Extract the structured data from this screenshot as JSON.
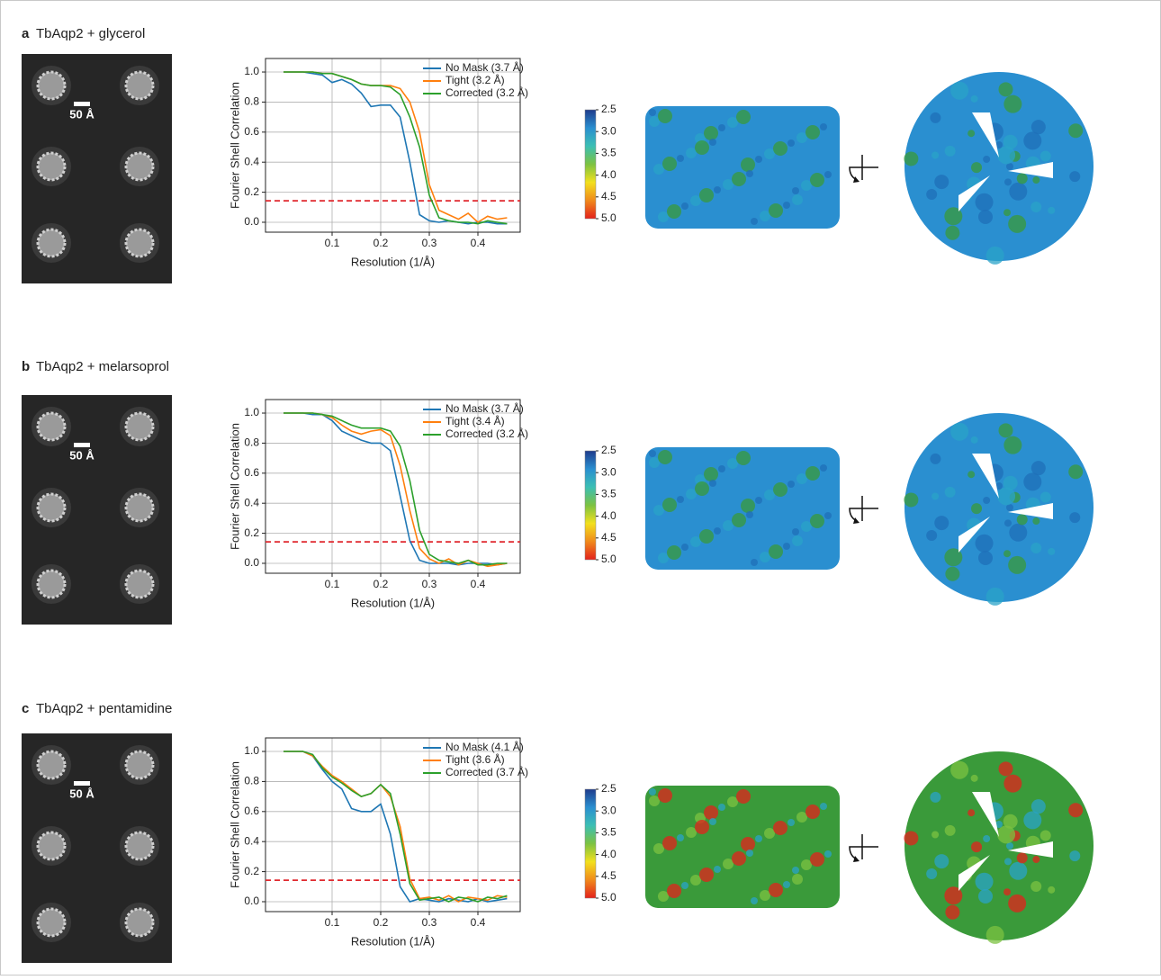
{
  "panels": [
    {
      "letter": "a",
      "title": "TbAqp2 + glycerol",
      "scale_bar": "50 Å",
      "colorbar": {
        "lim": [
          2.5,
          5.0
        ],
        "ticks": [
          2.5,
          {
            "value": 3,
            "label": "3.0"
          },
          3.5,
          {
            "value": 4,
            "label": "4.0"
          },
          4.5,
          {
            "value": 5,
            "label": "5.0"
          }
        ],
        "colors": [
          "#1f3c8c",
          "#2a8fd0",
          "#3cbfb4",
          "#7cc242",
          "#f2e01e",
          "#f08a1c",
          "#e3221c"
        ]
      }
    },
    {
      "letter": "b",
      "title": "TbAqp2 + melarsoprol",
      "scale_bar": "50 Å",
      "colorbar": {
        "lim": [
          2.5,
          5.0
        ],
        "ticks": [
          2.5,
          {
            "value": 3,
            "label": "3.0"
          },
          3.5,
          {
            "value": 4,
            "label": "4.0"
          },
          4.5,
          {
            "value": 5,
            "label": "5.0"
          }
        ],
        "colors": [
          "#1f3c8c",
          "#2a8fd0",
          "#3cbfb4",
          "#7cc242",
          "#f2e01e",
          "#f08a1c",
          "#e3221c"
        ]
      }
    },
    {
      "letter": "c",
      "title": "TbAqp2 + pentamidine",
      "scale_bar": "50 Å",
      "colorbar": {
        "lim": [
          2.5,
          5.0
        ],
        "ticks": [
          2.5,
          {
            "value": 3,
            "label": "3.0"
          },
          3.5,
          {
            "value": 4,
            "label": "4.0"
          },
          4.5,
          {
            "value": 5,
            "label": "5.0"
          }
        ],
        "colors": [
          "#1f3c8c",
          "#2a8fd0",
          "#3cbfb4",
          "#7cc242",
          "#f2e01e",
          "#f08a1c",
          "#e3221c"
        ]
      }
    }
  ],
  "chart_data": [
    {
      "type": "line",
      "x_label": "Resolution (1/Å)",
      "y_label": "Fourier Shell Correlation",
      "x": [
        0,
        0.02,
        0.04,
        0.06,
        0.08,
        0.1,
        0.12,
        0.14,
        0.16,
        0.18,
        0.2,
        0.22,
        0.24,
        0.26,
        0.28,
        0.3,
        0.32,
        0.34,
        0.36,
        0.38,
        0.4,
        0.42,
        0.44,
        0.46
      ],
      "series": [
        {
          "name": "No Mask (3.7 Å)",
          "color": "#1f77b4",
          "values": [
            1.0,
            1.0,
            1.0,
            0.99,
            0.98,
            0.93,
            0.95,
            0.92,
            0.86,
            0.77,
            0.78,
            0.78,
            0.7,
            0.4,
            0.05,
            0.01,
            0.0,
            0.01,
            0.0,
            -0.01,
            0.0,
            0.0,
            -0.01,
            -0.01
          ]
        },
        {
          "name": "Tight (3.2 Å)",
          "color": "#ff7f0e",
          "values": [
            1.0,
            1.0,
            1.0,
            1.0,
            0.99,
            0.99,
            0.97,
            0.95,
            0.92,
            0.91,
            0.91,
            0.91,
            0.89,
            0.8,
            0.6,
            0.25,
            0.08,
            0.05,
            0.02,
            0.06,
            0.0,
            0.04,
            0.02,
            0.03
          ]
        },
        {
          "name": "Corrected (3.2 Å)",
          "color": "#2ca02c",
          "values": [
            1.0,
            1.0,
            1.0,
            1.0,
            0.99,
            0.99,
            0.97,
            0.95,
            0.92,
            0.91,
            0.91,
            0.9,
            0.85,
            0.7,
            0.5,
            0.18,
            0.03,
            0.01,
            0.0,
            0.0,
            -0.01,
            0.01,
            0.0,
            -0.01
          ]
        }
      ],
      "xlim": [
        -0.037,
        0.487
      ],
      "ylim": [
        -0.066,
        1.09
      ],
      "xticks": [
        0.1,
        0.2,
        0.3,
        0.4
      ],
      "yticks": [
        {
          "value": 0,
          "label": "0.0"
        },
        0.2,
        0.4,
        0.6,
        0.8,
        {
          "value": 1,
          "label": "1.0"
        }
      ],
      "grid": true,
      "legend": "upper right",
      "threshold": 0.143,
      "threshold_color": "#e0282e"
    },
    {
      "type": "line",
      "x_label": "Resolution (1/Å)",
      "y_label": "Fourier Shell Correlation",
      "x": [
        0,
        0.02,
        0.04,
        0.06,
        0.08,
        0.1,
        0.12,
        0.14,
        0.16,
        0.18,
        0.2,
        0.22,
        0.24,
        0.26,
        0.28,
        0.3,
        0.32,
        0.34,
        0.36,
        0.38,
        0.4,
        0.42,
        0.44,
        0.46
      ],
      "series": [
        {
          "name": "No Mask (3.7 Å)",
          "color": "#1f77b4",
          "values": [
            1.0,
            1.0,
            1.0,
            0.99,
            0.99,
            0.95,
            0.88,
            0.85,
            0.82,
            0.8,
            0.8,
            0.75,
            0.45,
            0.15,
            0.02,
            0.0,
            0.0,
            0.0,
            -0.01,
            0.0,
            0.0,
            0.0,
            -0.01,
            0.0
          ]
        },
        {
          "name": "Tight (3.4 Å)",
          "color": "#ff7f0e",
          "values": [
            1.0,
            1.0,
            1.0,
            1.0,
            0.99,
            0.97,
            0.92,
            0.88,
            0.86,
            0.88,
            0.89,
            0.85,
            0.65,
            0.35,
            0.1,
            0.03,
            0.0,
            0.03,
            -0.01,
            0.02,
            0.0,
            -0.02,
            -0.01,
            0.0
          ]
        },
        {
          "name": "Corrected (3.2 Å)",
          "color": "#2ca02c",
          "values": [
            1.0,
            1.0,
            1.0,
            1.0,
            0.99,
            0.98,
            0.95,
            0.92,
            0.9,
            0.9,
            0.9,
            0.88,
            0.78,
            0.55,
            0.22,
            0.06,
            0.02,
            0.01,
            0.0,
            0.02,
            -0.01,
            -0.01,
            0.0,
            0.0
          ]
        }
      ],
      "xlim": [
        -0.037,
        0.487
      ],
      "ylim": [
        -0.066,
        1.09
      ],
      "xticks": [
        0.1,
        0.2,
        0.3,
        0.4
      ],
      "yticks": [
        {
          "value": 0,
          "label": "0.0"
        },
        0.2,
        0.4,
        0.6,
        0.8,
        {
          "value": 1,
          "label": "1.0"
        }
      ],
      "grid": true,
      "legend": "upper right",
      "threshold": 0.143,
      "threshold_color": "#e0282e"
    },
    {
      "type": "line",
      "x_label": "Resolution (1/Å)",
      "y_label": "Fourier Shell Correlation",
      "x": [
        0,
        0.02,
        0.04,
        0.06,
        0.08,
        0.1,
        0.12,
        0.14,
        0.16,
        0.18,
        0.2,
        0.22,
        0.24,
        0.26,
        0.28,
        0.3,
        0.32,
        0.34,
        0.36,
        0.38,
        0.4,
        0.42,
        0.44,
        0.46
      ],
      "series": [
        {
          "name": "No Mask (4.1 Å)",
          "color": "#1f77b4",
          "values": [
            1.0,
            1.0,
            1.0,
            0.97,
            0.88,
            0.8,
            0.75,
            0.62,
            0.6,
            0.6,
            0.65,
            0.45,
            0.1,
            0.0,
            0.02,
            0.01,
            0.0,
            0.02,
            0.01,
            0.0,
            0.02,
            0.0,
            0.01,
            0.02
          ]
        },
        {
          "name": "Tight (3.6 Å)",
          "color": "#ff7f0e",
          "values": [
            1.0,
            1.0,
            1.0,
            0.97,
            0.9,
            0.84,
            0.8,
            0.75,
            0.7,
            0.72,
            0.78,
            0.7,
            0.5,
            0.15,
            0.02,
            0.03,
            0.01,
            0.04,
            0.0,
            0.03,
            0.02,
            0.01,
            0.04,
            0.03
          ]
        },
        {
          "name": "Corrected (3.7 Å)",
          "color": "#2ca02c",
          "values": [
            1.0,
            1.0,
            1.0,
            0.98,
            0.89,
            0.83,
            0.79,
            0.74,
            0.7,
            0.72,
            0.78,
            0.72,
            0.45,
            0.12,
            0.01,
            0.02,
            0.03,
            0.0,
            0.03,
            0.02,
            0.0,
            0.03,
            0.02,
            0.04
          ]
        }
      ],
      "xlim": [
        -0.037,
        0.487
      ],
      "ylim": [
        -0.066,
        1.09
      ],
      "xticks": [
        0.1,
        0.2,
        0.3,
        0.4
      ],
      "yticks": [
        {
          "value": 0,
          "label": "0.0"
        },
        0.2,
        0.4,
        0.6,
        0.8,
        {
          "value": 1,
          "label": "1.0"
        }
      ],
      "grid": true,
      "legend": "upper right",
      "threshold": 0.143,
      "threshold_color": "#e0282e"
    }
  ]
}
